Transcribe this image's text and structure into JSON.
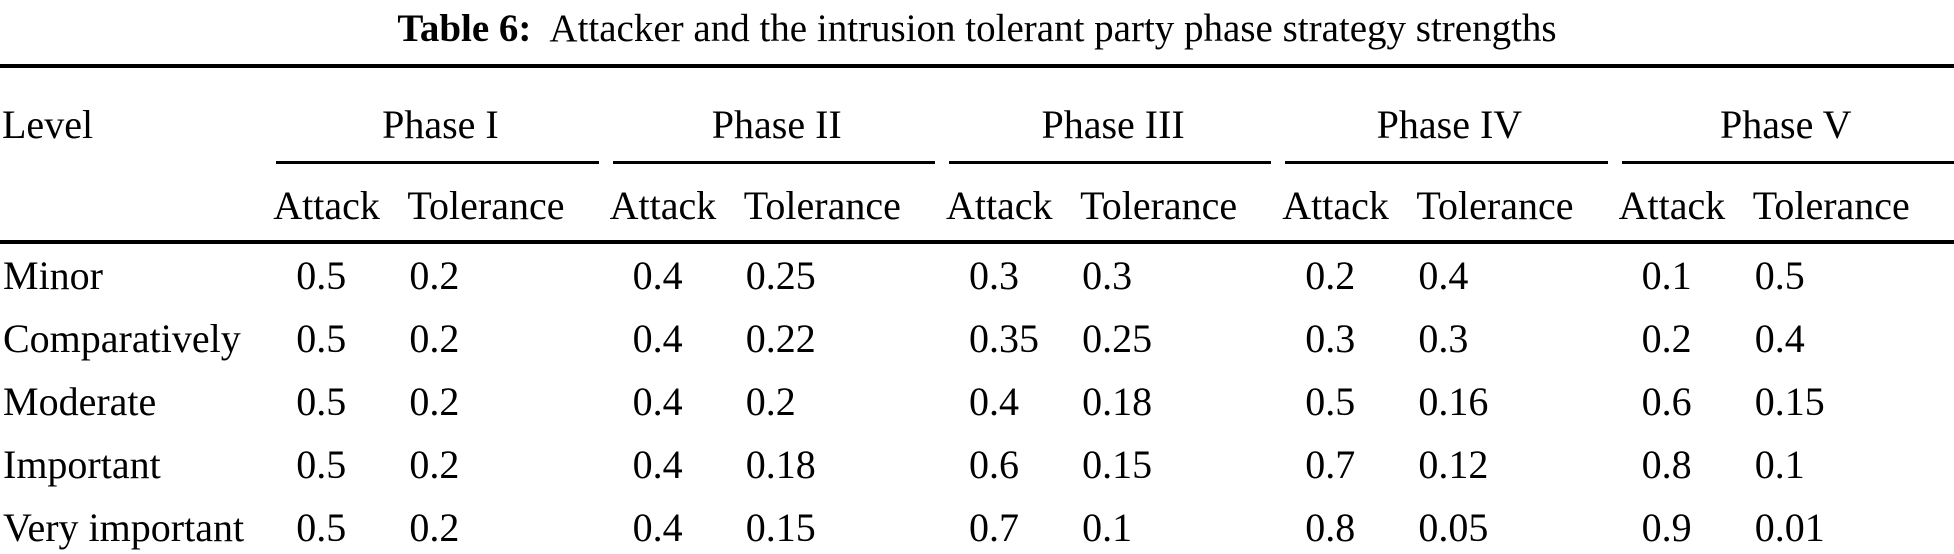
{
  "caption": {
    "label": "Table 6:",
    "text": "Attacker and the intrusion tolerant party phase strategy strengths"
  },
  "colors": {
    "text": "#000000",
    "background": "#ffffff",
    "rule": "#000000"
  },
  "table": {
    "level_header": "Level",
    "phases": [
      "Phase I",
      "Phase II",
      "Phase III",
      "Phase IV",
      "Phase V"
    ],
    "subheader_attack": "Attack",
    "subheader_tolerance": "Tolerance",
    "rows": [
      {
        "level": "Minor",
        "values": [
          "0.5",
          "0.2",
          "0.4",
          "0.25",
          "0.3",
          "0.3",
          "0.2",
          "0.4",
          "0.1",
          "0.5"
        ]
      },
      {
        "level": "Comparatively",
        "values": [
          "0.5",
          "0.2",
          "0.4",
          "0.22",
          "0.35",
          "0.25",
          "0.3",
          "0.3",
          "0.2",
          "0.4"
        ]
      },
      {
        "level": "Moderate",
        "values": [
          "0.5",
          "0.2",
          "0.4",
          "0.2",
          "0.4",
          "0.18",
          "0.5",
          "0.16",
          "0.6",
          "0.15"
        ]
      },
      {
        "level": "Important",
        "values": [
          "0.5",
          "0.2",
          "0.4",
          "0.18",
          "0.6",
          "0.15",
          "0.7",
          "0.12",
          "0.8",
          "0.1"
        ]
      },
      {
        "level": "Very important",
        "values": [
          "0.5",
          "0.2",
          "0.4",
          "0.15",
          "0.7",
          "0.1",
          "0.8",
          "0.05",
          "0.9",
          "0.01"
        ]
      }
    ]
  }
}
